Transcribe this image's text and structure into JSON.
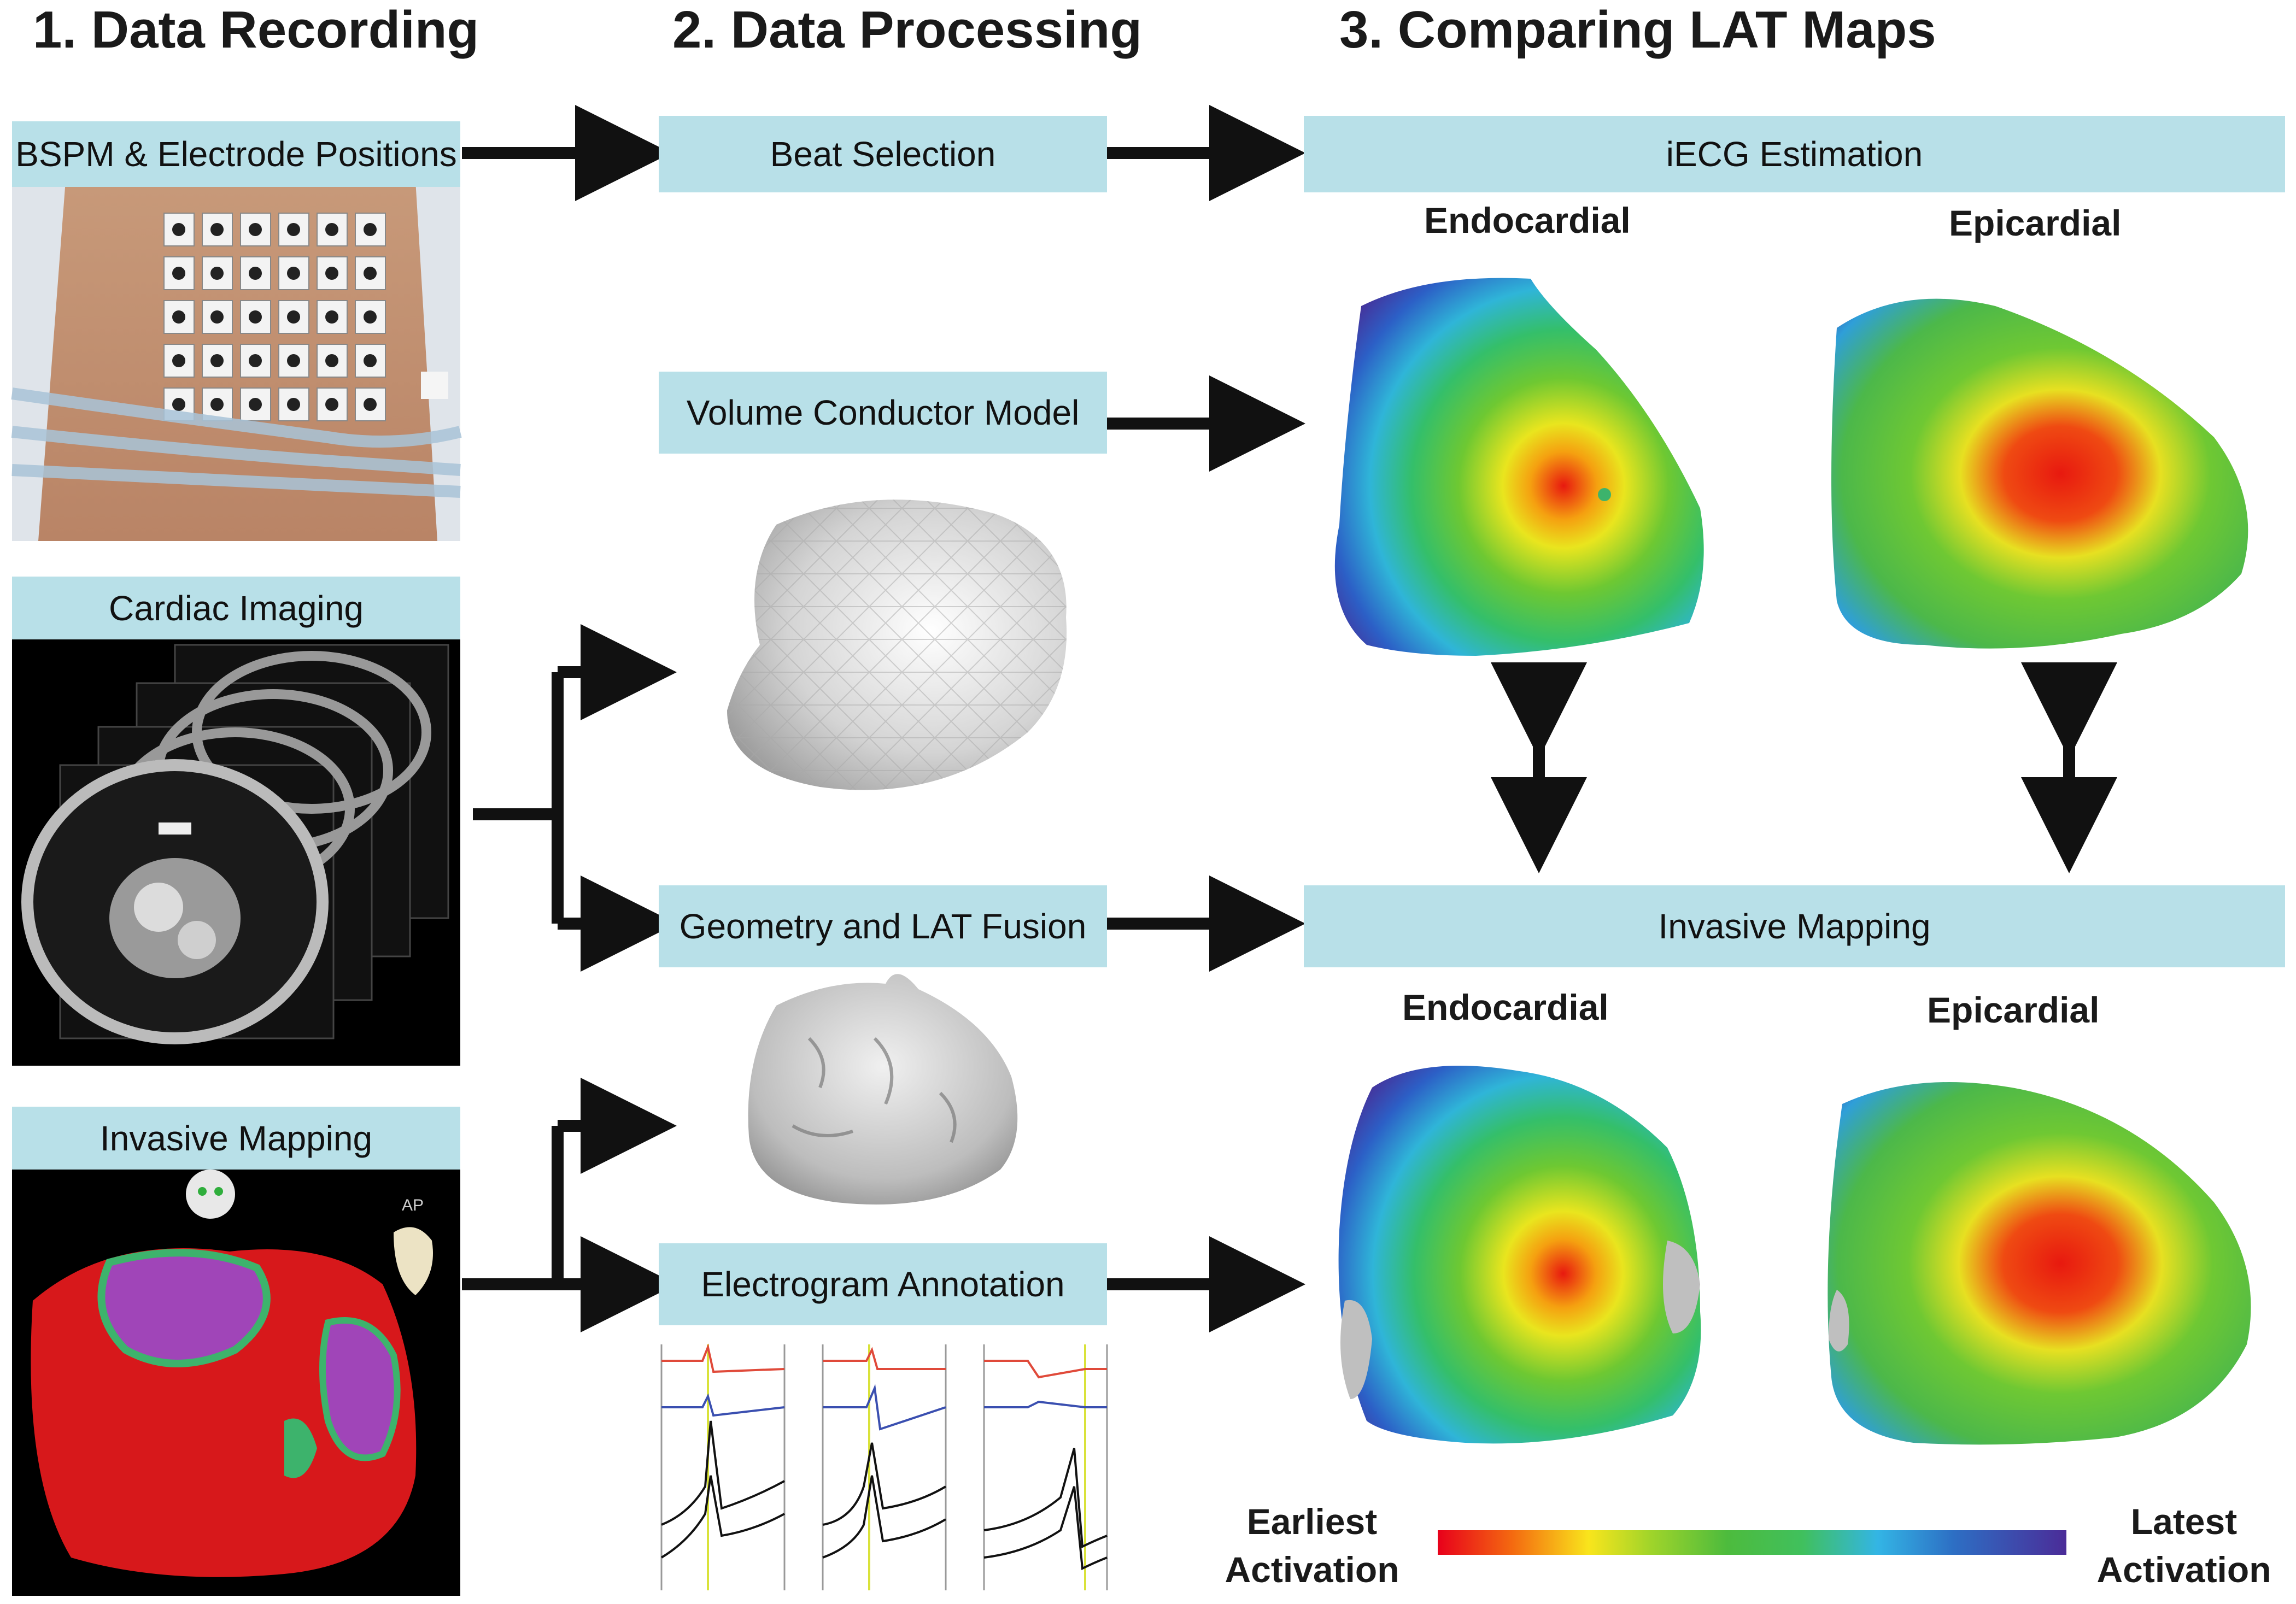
{
  "columns": {
    "recording": "1. Data Recording",
    "processing": "2. Data Processing",
    "comparing": "3. Comparing LAT Maps"
  },
  "recording": {
    "bspm": "BSPM & Electrode Positions",
    "imaging": "Cardiac Imaging",
    "invasive": "Invasive Mapping",
    "ap_label": "AP"
  },
  "processing": {
    "beat_selection": "Beat Selection",
    "volume_conductor": "Volume Conductor Model",
    "geometry_fusion": "Geometry and LAT Fusion",
    "electrogram_annotation": "Electrogram Annotation"
  },
  "comparing": {
    "iecg": "iECG Estimation",
    "invasive": "Invasive Mapping",
    "endocardial": "Endocardial",
    "epicardial": "Epicardial"
  },
  "legend": {
    "earliest": "Earliest\nActivation",
    "latest": "Latest\nActivation",
    "gradient_colors": [
      "#e8001b",
      "#f46b10",
      "#f9e51c",
      "#9fd42a",
      "#4dbb3d",
      "#40c05d",
      "#33b5e5",
      "#2d6fc4",
      "#4b2c98"
    ]
  },
  "colors": {
    "box_fill": "#b8e0e8",
    "arrow": "#111111"
  }
}
